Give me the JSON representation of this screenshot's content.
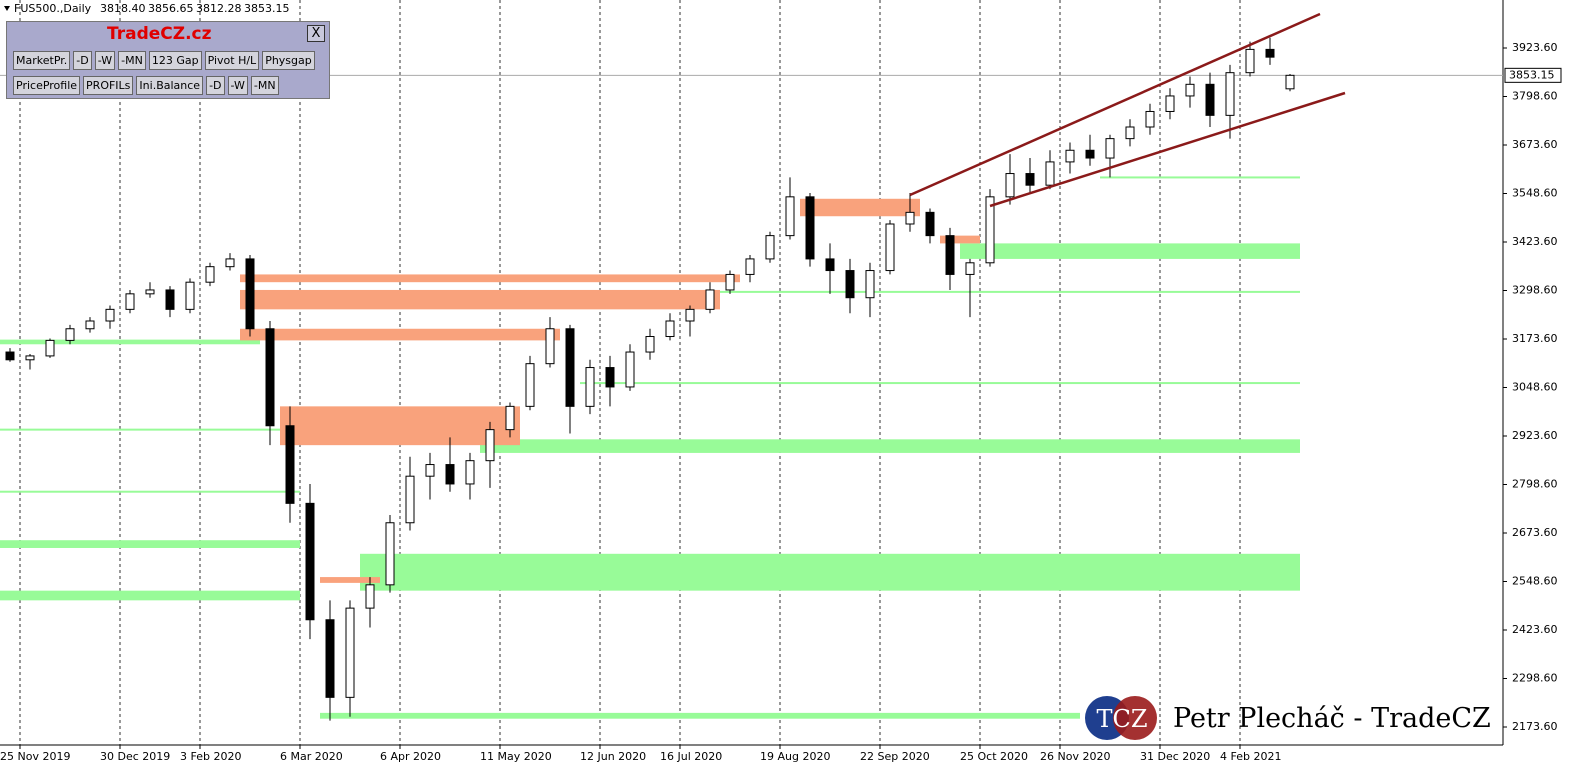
{
  "header": {
    "symbol": "FUS500.,Daily",
    "ohlc": [
      "3818.40",
      "3856.65",
      "3812.28",
      "3853.15"
    ]
  },
  "panel": {
    "title": "TradeCZ.cz",
    "close": "X",
    "rows": [
      [
        "MarketPr.",
        "-D",
        "-W",
        "-MN",
        "123 Gap",
        "Pivot H/L",
        "Physgap"
      ],
      [
        "PriceProfile",
        "PROFILs",
        "Ini.Balance",
        "-D",
        "-W",
        "-MN"
      ]
    ]
  },
  "logo": {
    "badge": "TCZ",
    "text": "Petr Plecháč - TradeCZ"
  },
  "chart_data": {
    "type": "candlestick",
    "categories": [
      null,
      "25 Nov 2019",
      null,
      null,
      null,
      null,
      "30 Dec 2019",
      null,
      null,
      null,
      "3 Feb 2020",
      null,
      null,
      null,
      null,
      "6 Mar 2020",
      null,
      null,
      null,
      null,
      "6 Apr 2020",
      null,
      null,
      null,
      null,
      "11 May 2020",
      null,
      null,
      null,
      null,
      "12 Jun 2020",
      null,
      null,
      null,
      "16 Jul 2020",
      null,
      null,
      null,
      null,
      "19 Aug 2020",
      null,
      null,
      null,
      null,
      "22 Sep 2020",
      null,
      null,
      null,
      null,
      "25 Oct 2020",
      null,
      null,
      null,
      "26 Nov 2020",
      null,
      null,
      null,
      null,
      "31 Dec 2020",
      null,
      null,
      null,
      "4 Feb 2021",
      null,
      null
    ],
    "open": [
      3140,
      3120,
      3130,
      3170,
      3200,
      3220,
      3250,
      3290,
      3300,
      3250,
      3320,
      3360,
      3380,
      3200,
      2950,
      2750,
      2450,
      2250,
      2480,
      2540,
      2700,
      2820,
      2850,
      2800,
      2860,
      2940,
      3000,
      3110,
      3200,
      3000,
      3100,
      3050,
      3140,
      3180,
      3220,
      3250,
      3300,
      3340,
      3380,
      3440,
      3540,
      3380,
      3350,
      3280,
      3350,
      3470,
      3500,
      3440,
      3340,
      3370,
      3540,
      3600,
      3570,
      3630,
      3660,
      3640,
      3690,
      3720,
      3760,
      3800,
      3830,
      3750,
      3860,
      3920,
      3818.4
    ],
    "high": [
      3150,
      3135,
      3175,
      3210,
      3230,
      3260,
      3300,
      3320,
      3310,
      3330,
      3370,
      3395,
      3390,
      3220,
      3000,
      2800,
      2500,
      2500,
      2560,
      2720,
      2870,
      2880,
      2920,
      2880,
      2960,
      3010,
      3130,
      3230,
      3210,
      3120,
      3130,
      3160,
      3200,
      3240,
      3260,
      3320,
      3350,
      3390,
      3450,
      3590,
      3550,
      3420,
      3380,
      3370,
      3480,
      3550,
      3510,
      3460,
      3380,
      3560,
      3650,
      3640,
      3660,
      3680,
      3700,
      3700,
      3740,
      3780,
      3820,
      3850,
      3860,
      3880,
      3940,
      3950,
      3856.65
    ],
    "low": [
      3115,
      3095,
      3125,
      3160,
      3190,
      3200,
      3240,
      3280,
      3230,
      3240,
      3310,
      3350,
      3180,
      2900,
      2700,
      2400,
      2190,
      2200,
      2430,
      2520,
      2680,
      2760,
      2780,
      2760,
      2790,
      2920,
      2990,
      3100,
      2930,
      2980,
      3000,
      3040,
      3120,
      3170,
      3180,
      3240,
      3290,
      3320,
      3370,
      3430,
      3360,
      3290,
      3240,
      3230,
      3340,
      3450,
      3420,
      3300,
      3230,
      3360,
      3520,
      3550,
      3560,
      3600,
      3620,
      3590,
      3670,
      3700,
      3740,
      3770,
      3720,
      3690,
      3850,
      3880,
      3812.28
    ],
    "close": [
      3120,
      3130,
      3170,
      3200,
      3220,
      3250,
      3290,
      3300,
      3250,
      3320,
      3360,
      3380,
      3200,
      2950,
      2750,
      2450,
      2250,
      2480,
      2540,
      2700,
      2820,
      2850,
      2800,
      2860,
      2940,
      3000,
      3110,
      3200,
      3000,
      3100,
      3050,
      3140,
      3180,
      3220,
      3250,
      3300,
      3340,
      3380,
      3440,
      3540,
      3380,
      3350,
      3280,
      3350,
      3470,
      3500,
      3440,
      3340,
      3370,
      3540,
      3600,
      3570,
      3630,
      3660,
      3640,
      3690,
      3720,
      3760,
      3800,
      3830,
      3750,
      3860,
      3920,
      3900,
      3853.15
    ],
    "zones": [
      {
        "low": 2525,
        "high": 2620,
        "start": 18,
        "end": 64,
        "color": "#98fb98"
      },
      {
        "low": 2880,
        "high": 2915,
        "start": 24,
        "end": 64,
        "color": "#98fb98"
      },
      {
        "low": 3380,
        "high": 3420,
        "start": 48,
        "end": 64,
        "color": "#98fb98"
      },
      {
        "low": 3060,
        "high": 3060,
        "start": 29,
        "end": 64,
        "color": "#98fb98"
      },
      {
        "low": 3295,
        "high": 3295,
        "start": 34,
        "end": 64,
        "color": "#98fb98"
      },
      {
        "low": 3590,
        "high": 3590,
        "start": 55,
        "end": 64,
        "color": "#98fb98"
      },
      {
        "low": 2195,
        "high": 2210,
        "start": 16,
        "end": 53,
        "color": "#98fb98"
      },
      {
        "low": 2500,
        "high": 2525,
        "start": 0,
        "end": 14,
        "color": "#98fb98"
      },
      {
        "low": 2635,
        "high": 2655,
        "start": 0,
        "end": 14,
        "color": "#98fb98"
      },
      {
        "low": 2780,
        "high": 2780,
        "start": 0,
        "end": 14,
        "color": "#98fb98"
      },
      {
        "low": 2940,
        "high": 2940,
        "start": 0,
        "end": 13,
        "color": "#98fb98"
      },
      {
        "low": 3160,
        "high": 3172,
        "start": 0,
        "end": 12,
        "color": "#98fb98"
      },
      {
        "low": 3250,
        "high": 3300,
        "start": 12,
        "end": 35,
        "color": "#f9a27c"
      },
      {
        "low": 3170,
        "high": 3200,
        "start": 12,
        "end": 27,
        "color": "#f9a27c"
      },
      {
        "low": 2900,
        "high": 3000,
        "start": 14,
        "end": 25,
        "color": "#f9a27c"
      },
      {
        "low": 3490,
        "high": 3535,
        "start": 40,
        "end": 45,
        "color": "#f9a27c"
      },
      {
        "low": 3320,
        "high": 3340,
        "start": 12,
        "end": 36,
        "color": "#f9a27c"
      },
      {
        "low": 3420,
        "high": 3440,
        "start": 47,
        "end": 48,
        "color": "#f9a27c"
      },
      {
        "low": 2545,
        "high": 2560,
        "start": 16,
        "end": 18,
        "color": "#f9a27c"
      }
    ],
    "current_price": 3853.15,
    "ylim": [
      2127.2,
      4047.3
    ],
    "yticks": [
      {
        "value": 2173.6,
        "label": "2173.60"
      },
      {
        "value": 2298.6,
        "label": "2298.60"
      },
      {
        "value": 2423.6,
        "label": "2423.60"
      },
      {
        "value": 2548.6,
        "label": "2548.60"
      },
      {
        "value": 2673.6,
        "label": "2673.60"
      },
      {
        "value": 2798.6,
        "label": "2798.60"
      },
      {
        "value": 2923.6,
        "label": "2923.60"
      },
      {
        "value": 3048.6,
        "label": "3048.60"
      },
      {
        "value": 3173.6,
        "label": "3173.60"
      },
      {
        "value": 3298.6,
        "label": "3298.60"
      },
      {
        "value": 3423.6,
        "label": "3423.60"
      },
      {
        "value": 3548.6,
        "label": "3548.60"
      },
      {
        "value": 3673.6,
        "label": "3673.60"
      },
      {
        "value": 3798.6,
        "label": "3798.60"
      },
      {
        "value": 3923.6,
        "label": "3923.60"
      }
    ]
  }
}
